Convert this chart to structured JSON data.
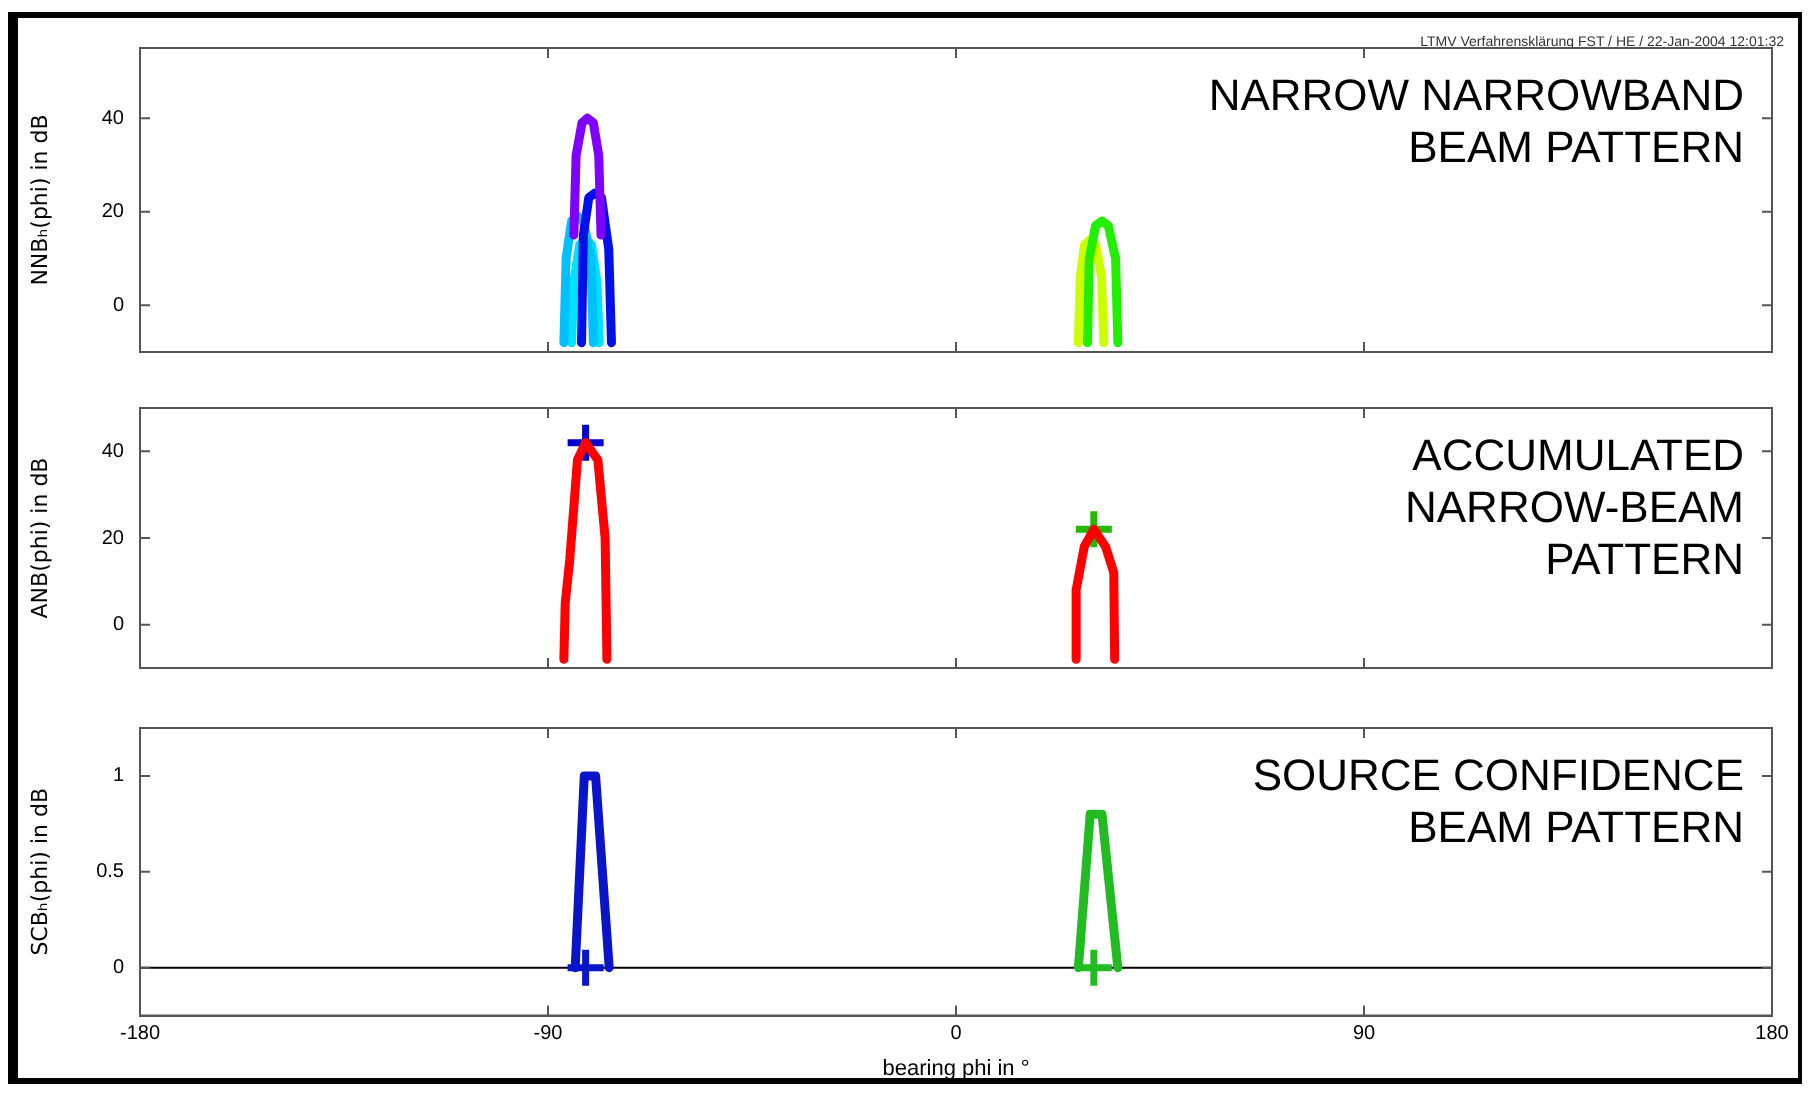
{
  "chart_data": [
    {
      "type": "line",
      "title": "NARROW NARROWBAND\nBEAM PATTERN",
      "ylabel": "NNBₕ(phi) in dB",
      "annotations": [
        "LTMV Verfahrensklärung FST / HE / 22-Jan-2004 12:01:32"
      ],
      "xlim": [
        -180,
        180
      ],
      "xticks": [
        -180,
        -90,
        0,
        90,
        180
      ],
      "ylim": [
        -10,
        55
      ],
      "yticks": [
        0,
        20,
        40
      ],
      "tick_labels": "y",
      "grid": false,
      "legend": false,
      "marker": "none",
      "series": [
        {
          "color": "#8000ff",
          "x": [
            -84.3,
            -83.8,
            -82.5,
            -81.3,
            -80,
            -78.8,
            -78.3
          ],
          "values": [
            15,
            32,
            39,
            40,
            39,
            32,
            15
          ]
        },
        {
          "color": "#0010e8",
          "x": [
            -82.6,
            -82.2,
            -81,
            -79.6,
            -78.2,
            -76.6,
            -76
          ],
          "values": [
            -8,
            15,
            23,
            24,
            23,
            12,
            -8
          ]
        },
        {
          "color": "#00c0ff",
          "x": [
            -86.5,
            -86,
            -84.8,
            -83.5,
            -82.2,
            -80.5,
            -80
          ],
          "values": [
            -8,
            10,
            18,
            19,
            18,
            10,
            -8
          ]
        },
        {
          "color": "#00e0ff",
          "x": [
            -84.8,
            -84.3,
            -83,
            -81.7,
            -80.4,
            -79.2,
            -78.7
          ],
          "values": [
            -8,
            5,
            13,
            14,
            13,
            5,
            -8
          ]
        },
        {
          "color": "#22ee00",
          "x": [
            29,
            29.4,
            30.8,
            32.2,
            33.6,
            35.2,
            35.7
          ],
          "values": [
            -8,
            10,
            17,
            18,
            17,
            10,
            -8
          ]
        },
        {
          "color": "#ccff00",
          "x": [
            27,
            27.4,
            28.4,
            29.6,
            30.8,
            32.1,
            32.6
          ],
          "values": [
            -8,
            6,
            13,
            14,
            13,
            6,
            -8
          ]
        }
      ]
    },
    {
      "type": "line",
      "title": "ACCUMULATED\nNARROW-BEAM\nPATTERN",
      "ylabel": "ANB(phi) in dB",
      "xlim": [
        -180,
        180
      ],
      "xticks": [
        -180,
        -90,
        0,
        90,
        180
      ],
      "ylim": [
        -10,
        50
      ],
      "yticks": [
        0,
        20,
        40
      ],
      "tick_labels": "y",
      "grid": false,
      "legend": false,
      "marker": "none",
      "series": [
        {
          "color": "#ff0000",
          "x": [
            -86.5,
            -86.2,
            -85.2,
            -83.5,
            -81.7,
            -79,
            -77.4,
            -77
          ],
          "values": [
            -8,
            5,
            15,
            38,
            42,
            38,
            20,
            -8
          ]
        },
        {
          "color": "#ff0000",
          "x": [
            26.5,
            26.5,
            28.3,
            30.4,
            33,
            34.8,
            35
          ],
          "values": [
            -8,
            8,
            18,
            22,
            18,
            12,
            -8
          ]
        },
        {
          "type": "scatter",
          "marker": "cross",
          "color": "#0000cc",
          "x": [
            -81.7
          ],
          "values": [
            42
          ]
        },
        {
          "type": "scatter",
          "marker": "cross",
          "color": "#22bb00",
          "x": [
            30.4
          ],
          "values": [
            22
          ]
        }
      ]
    },
    {
      "type": "line",
      "title": "SOURCE CONFIDENCE\nBEAM PATTERN",
      "ylabel": "SCBₕ(phi) in dB",
      "xlabel": "bearing phi in °",
      "xlim": [
        -180,
        180
      ],
      "xticks": [
        -180,
        -90,
        0,
        90,
        180
      ],
      "ylim": [
        -0.25,
        1.25
      ],
      "yticks": [
        0,
        0.5,
        1
      ],
      "grid": false,
      "legend": false,
      "marker": "none",
      "ref_lines": [
        {
          "axis": "y",
          "value": 0,
          "color": "#000000"
        }
      ],
      "series": [
        {
          "color": "#0a14c8",
          "x": [
            -84,
            -82,
            -79.5,
            -76.5
          ],
          "values": [
            0,
            1,
            1,
            0
          ]
        },
        {
          "color": "#22bb22",
          "x": [
            27,
            29.6,
            32.2,
            35.7
          ],
          "values": [
            0,
            0.8,
            0.8,
            0
          ]
        },
        {
          "type": "scatter",
          "marker": "cross",
          "color": "#0a14c8",
          "x": [
            -81.7
          ],
          "values": [
            0
          ]
        },
        {
          "type": "scatter",
          "marker": "cross",
          "color": "#22bb22",
          "x": [
            30.4
          ],
          "values": [
            0
          ]
        }
      ]
    }
  ]
}
